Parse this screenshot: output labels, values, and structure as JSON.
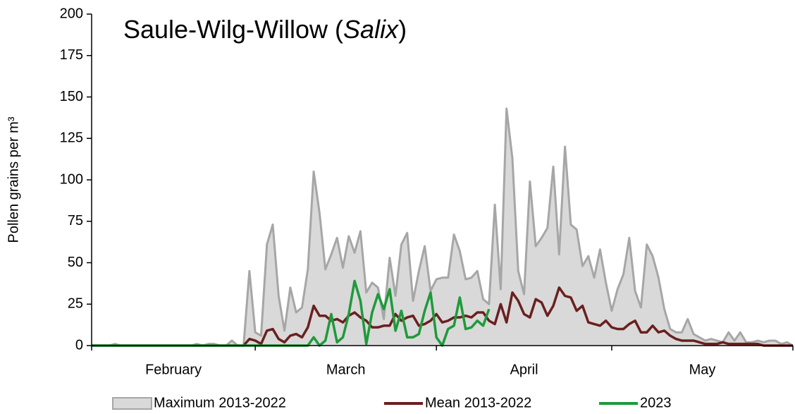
{
  "chart_data": {
    "type": "line",
    "title_parts": [
      "Saule-Wilg-Willow (",
      "Salix",
      ")"
    ],
    "y_label": "Pollen grains per m³",
    "x": [
      0,
      1,
      2,
      3,
      4,
      5,
      6,
      7,
      8,
      9,
      10,
      11,
      12,
      13,
      14,
      15,
      16,
      17,
      18,
      19,
      20,
      21,
      22,
      23,
      24,
      25,
      26,
      27,
      28,
      29,
      30,
      31,
      32,
      33,
      34,
      35,
      36,
      37,
      38,
      39,
      40,
      41,
      42,
      43,
      44,
      45,
      46,
      47,
      48,
      49,
      50,
      51,
      52,
      53,
      54,
      55,
      56,
      57,
      58,
      59,
      60,
      61,
      62,
      63,
      64,
      65,
      66,
      67,
      68,
      69,
      70,
      71,
      72,
      73,
      74,
      75,
      76,
      77,
      78,
      79,
      80,
      81,
      82,
      83,
      84,
      85,
      86,
      87,
      88,
      89,
      90,
      91,
      92,
      93,
      94,
      95,
      96,
      97,
      98,
      99,
      100,
      101,
      102,
      103,
      104,
      105,
      106,
      107,
      108,
      109,
      110,
      111,
      112,
      113,
      114,
      115,
      116,
      117,
      118,
      119,
      120
    ],
    "xlim": [
      0,
      120
    ],
    "xticks": [
      0,
      28,
      59,
      89,
      120
    ],
    "month_labels": [
      {
        "value": 14,
        "label": "February"
      },
      {
        "value": 43.5,
        "label": "March"
      },
      {
        "value": 74,
        "label": "April"
      },
      {
        "value": 104.5,
        "label": "May"
      }
    ],
    "ylim": [
      0,
      200
    ],
    "yticks": [
      0,
      25,
      50,
      75,
      100,
      125,
      150,
      175,
      200
    ],
    "series": [
      {
        "name": "Maximum 2013-2022",
        "kind": "area",
        "color": "#d9d9d9",
        "stroke": "#a6a6a6",
        "values": [
          0,
          0,
          0,
          0,
          1,
          0,
          0,
          0,
          0,
          0,
          0,
          0,
          0,
          0,
          0,
          0,
          0,
          0,
          1,
          0,
          1,
          1,
          0,
          0,
          3,
          0,
          0,
          45,
          8,
          6,
          61,
          73,
          30,
          9,
          35,
          20,
          23,
          46,
          105,
          80,
          46,
          55,
          65,
          47,
          66,
          56,
          69,
          32,
          38,
          35,
          16,
          53,
          30,
          61,
          68,
          27,
          45,
          60,
          33,
          40,
          41,
          41,
          67,
          57,
          40,
          41,
          45,
          28,
          25,
          85,
          34,
          143,
          113,
          45,
          31,
          99,
          60,
          65,
          71,
          108,
          55,
          120,
          73,
          70,
          48,
          54,
          41,
          58,
          38,
          21,
          34,
          43,
          65,
          33,
          23,
          61,
          54,
          41,
          22,
          10,
          8,
          8,
          16,
          7,
          5,
          3,
          4,
          3,
          2,
          8,
          3,
          8,
          2,
          2,
          3,
          2,
          3,
          3,
          1,
          2,
          0
        ]
      },
      {
        "name": "Mean 2013-2022",
        "kind": "line",
        "color": "#6b1f1f",
        "values": [
          0,
          0,
          0,
          0,
          0,
          0,
          0,
          0,
          0,
          0,
          0,
          0,
          0,
          0,
          0,
          0,
          0,
          0,
          0,
          0,
          0,
          0,
          0,
          0,
          0,
          0,
          0,
          4,
          3,
          1,
          9,
          10,
          4,
          2,
          6,
          7,
          5,
          11,
          24,
          18,
          18,
          15,
          16,
          14,
          18,
          20,
          17,
          15,
          11,
          11,
          12,
          12,
          19,
          15,
          17,
          18,
          12,
          13,
          15,
          19,
          14,
          15,
          17,
          17,
          18,
          17,
          20,
          20,
          15,
          13,
          25,
          14,
          32,
          27,
          19,
          17,
          28,
          26,
          18,
          24,
          35,
          30,
          29,
          21,
          24,
          14,
          13,
          12,
          15,
          11,
          10,
          10,
          13,
          15,
          8,
          8,
          12,
          8,
          9,
          6,
          4,
          3,
          3,
          3,
          2,
          1,
          1,
          1,
          2,
          1,
          1,
          1,
          1,
          1,
          1,
          0,
          0,
          0,
          0,
          0,
          0
        ]
      },
      {
        "name": "2023",
        "kind": "line",
        "color": "#1e9a3a",
        "values": [
          0,
          0,
          0,
          0,
          0,
          0,
          0,
          0,
          0,
          0,
          0,
          0,
          0,
          0,
          0,
          0,
          0,
          0,
          0,
          0,
          0,
          0,
          0,
          0,
          0,
          0,
          0,
          0,
          0,
          0,
          0,
          0,
          0,
          0,
          0,
          0,
          0,
          0,
          5,
          0,
          3,
          19,
          2,
          5,
          19,
          39,
          27,
          1,
          20,
          31,
          22,
          34,
          9,
          21,
          5,
          5,
          7,
          21,
          32,
          5,
          0,
          10,
          12,
          29,
          10,
          11,
          15,
          12,
          22,
          null,
          null,
          null,
          null,
          null,
          null,
          null,
          null,
          null,
          null,
          null,
          null,
          null,
          null,
          null,
          null,
          null,
          null,
          null,
          null,
          null,
          null,
          null,
          null,
          null,
          null,
          null,
          null,
          null,
          null,
          null,
          null,
          null,
          null,
          null,
          null,
          null,
          null,
          null,
          null,
          null,
          null,
          null,
          null,
          null,
          null,
          null,
          null,
          null,
          null,
          null,
          null
        ]
      }
    ]
  }
}
